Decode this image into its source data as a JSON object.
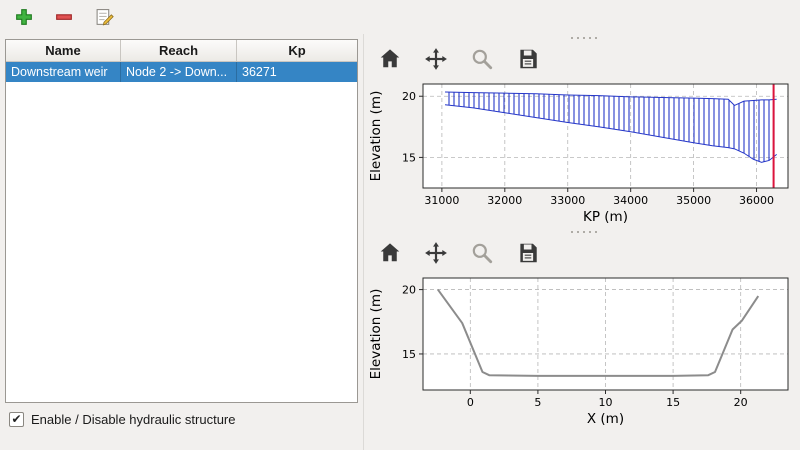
{
  "toolbar": {
    "buttons": [
      {
        "name": "add-structure"
      },
      {
        "name": "remove-structure"
      },
      {
        "name": "edit-structure"
      }
    ]
  },
  "structures_table": {
    "columns": [
      "Name",
      "Reach",
      "Kp"
    ],
    "rows": [
      [
        "Downstream weir",
        "Node 2 -> Down...",
        "36271"
      ]
    ],
    "selected_row": 0,
    "selection_color": "#3585c5"
  },
  "enable_checkbox": {
    "label": "Enable / Disable hydraulic structure",
    "checked": true
  },
  "plot_toolbar": {
    "icons": [
      "home-icon",
      "pan-icon",
      "zoom-icon",
      "save-icon"
    ]
  },
  "chart_data": [
    {
      "type": "line",
      "title": "Longitudinal profile along reach with cross-section hatching and weir marker",
      "xlabel": "KP (m)",
      "ylabel": "Elevation (m)",
      "xlim": [
        30700,
        36500
      ],
      "ylim": [
        12.5,
        21.0
      ],
      "xticks": [
        31000,
        32000,
        33000,
        34000,
        35000,
        36000
      ],
      "yticks": [
        15,
        20
      ],
      "grid": true,
      "series": [
        {
          "name": "channel-band",
          "kind": "hatch-band",
          "color": "#2637c8",
          "x": [
            31050,
            31500,
            32000,
            32500,
            33000,
            33500,
            34000,
            34500,
            35000,
            35300,
            35550,
            35650,
            35800,
            35950,
            36080,
            36200,
            36320
          ],
          "y_top": [
            20.35,
            20.3,
            20.25,
            20.2,
            20.1,
            20.05,
            19.95,
            19.9,
            19.85,
            19.8,
            19.75,
            19.25,
            19.6,
            19.65,
            19.7,
            19.7,
            19.75
          ],
          "y_bottom": [
            19.3,
            19.05,
            18.65,
            18.25,
            17.85,
            17.5,
            17.1,
            16.65,
            16.2,
            15.95,
            15.8,
            15.7,
            15.35,
            14.85,
            14.6,
            14.75,
            15.25
          ]
        }
      ],
      "annotations": [
        {
          "kind": "vline",
          "x": 36271,
          "color": "#dc143c"
        }
      ]
    },
    {
      "type": "line",
      "title": "Cross-section geometry at selected structure",
      "xlabel": "X (m)",
      "ylabel": "Elevation (m)",
      "xlim": [
        -3.5,
        23.5
      ],
      "ylim": [
        12.2,
        20.9
      ],
      "xticks": [
        0,
        5,
        10,
        15,
        20
      ],
      "yticks": [
        15,
        20
      ],
      "grid": true,
      "series": [
        {
          "name": "cross-section",
          "kind": "line",
          "color": "#8c8c8c",
          "width": 2,
          "x": [
            -2.4,
            -0.6,
            0.9,
            1.4,
            5,
            10,
            15,
            17.6,
            18.1,
            19.4,
            20.1,
            21.3
          ],
          "y": [
            20.0,
            17.4,
            13.6,
            13.35,
            13.3,
            13.3,
            13.3,
            13.35,
            13.6,
            16.9,
            17.6,
            19.5
          ]
        }
      ],
      "annotations": []
    }
  ]
}
